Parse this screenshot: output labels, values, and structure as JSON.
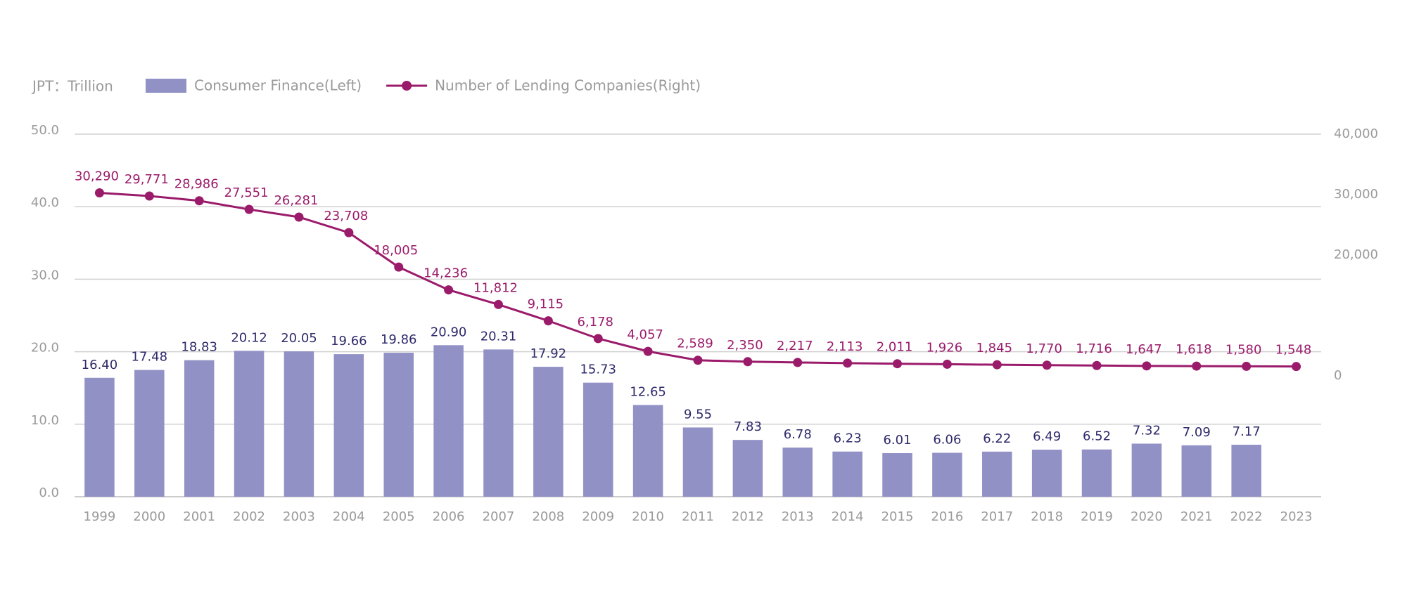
{
  "chart_data": {
    "type": "bar_line",
    "unit_label": "JPT：Trillion",
    "categories": [
      "1999",
      "2000",
      "2001",
      "2002",
      "2003",
      "2004",
      "2005",
      "2006",
      "2007",
      "2008",
      "2009",
      "2010",
      "2011",
      "2012",
      "2013",
      "2014",
      "2015",
      "2016",
      "2017",
      "2018",
      "2019",
      "2020",
      "2021",
      "2022",
      "2023"
    ],
    "series": [
      {
        "name": "Consumer Finance(Left)",
        "type": "bar",
        "color": "#9191c6",
        "values": [
          16.4,
          17.48,
          18.83,
          20.12,
          20.05,
          19.66,
          19.86,
          20.9,
          20.31,
          17.92,
          15.73,
          12.65,
          9.55,
          7.83,
          6.78,
          6.23,
          6.01,
          6.06,
          6.22,
          6.49,
          6.52,
          7.32,
          7.09,
          7.17,
          null
        ],
        "value_labels": [
          "16.40",
          "17.48",
          "18.83",
          "20.12",
          "20.05",
          "19.66",
          "19.86",
          "20.90",
          "20.31",
          "17.92",
          "15.73",
          "12.65",
          "9.55",
          "7.83",
          "6.78",
          "6.23",
          "6.01",
          "6.06",
          "6.22",
          "6.49",
          "6.52",
          "7.32",
          "7.09",
          "7.17",
          null
        ]
      },
      {
        "name": "Number of Lending Companies(Right)",
        "type": "line",
        "axis": "y2",
        "color": "#9b1b6b",
        "values": [
          30290,
          29771,
          28986,
          27551,
          26281,
          23708,
          18005,
          14236,
          11812,
          9115,
          6178,
          4057,
          2589,
          2350,
          2217,
          2113,
          2011,
          1926,
          1845,
          1770,
          1716,
          1647,
          1618,
          1580,
          1548
        ],
        "value_labels": [
          "30,290",
          "29,771",
          "28,986",
          "27,551",
          "26,281",
          "23,708",
          "18,005",
          "14,236",
          "11,812",
          "9,115",
          "6,178",
          "4,057",
          "2,589",
          "2,350",
          "2,217",
          "2,113",
          "2,011",
          "1,926",
          "1,845",
          "1,770",
          "1,716",
          "1,647",
          "1,618",
          "1,580",
          "1,548"
        ]
      }
    ],
    "ylim": [
      0,
      50
    ],
    "yticks": [
      {
        "value": 0,
        "label": "0.0"
      },
      {
        "value": 10,
        "label": "10.0"
      },
      {
        "value": 20,
        "label": "20.0"
      },
      {
        "value": 30,
        "label": "30.0"
      },
      {
        "value": 40,
        "label": "40.0"
      },
      {
        "value": 50,
        "label": "50.0"
      }
    ],
    "y2lim": [
      -20000,
      40000
    ],
    "y2ticks": [
      0,
      {
        "value": 20000,
        "label": "20,000"
      },
      {
        "value": 30000,
        "label": "30,000"
      },
      {
        "value": 40000,
        "label": "40,000"
      }
    ],
    "grid": true
  }
}
